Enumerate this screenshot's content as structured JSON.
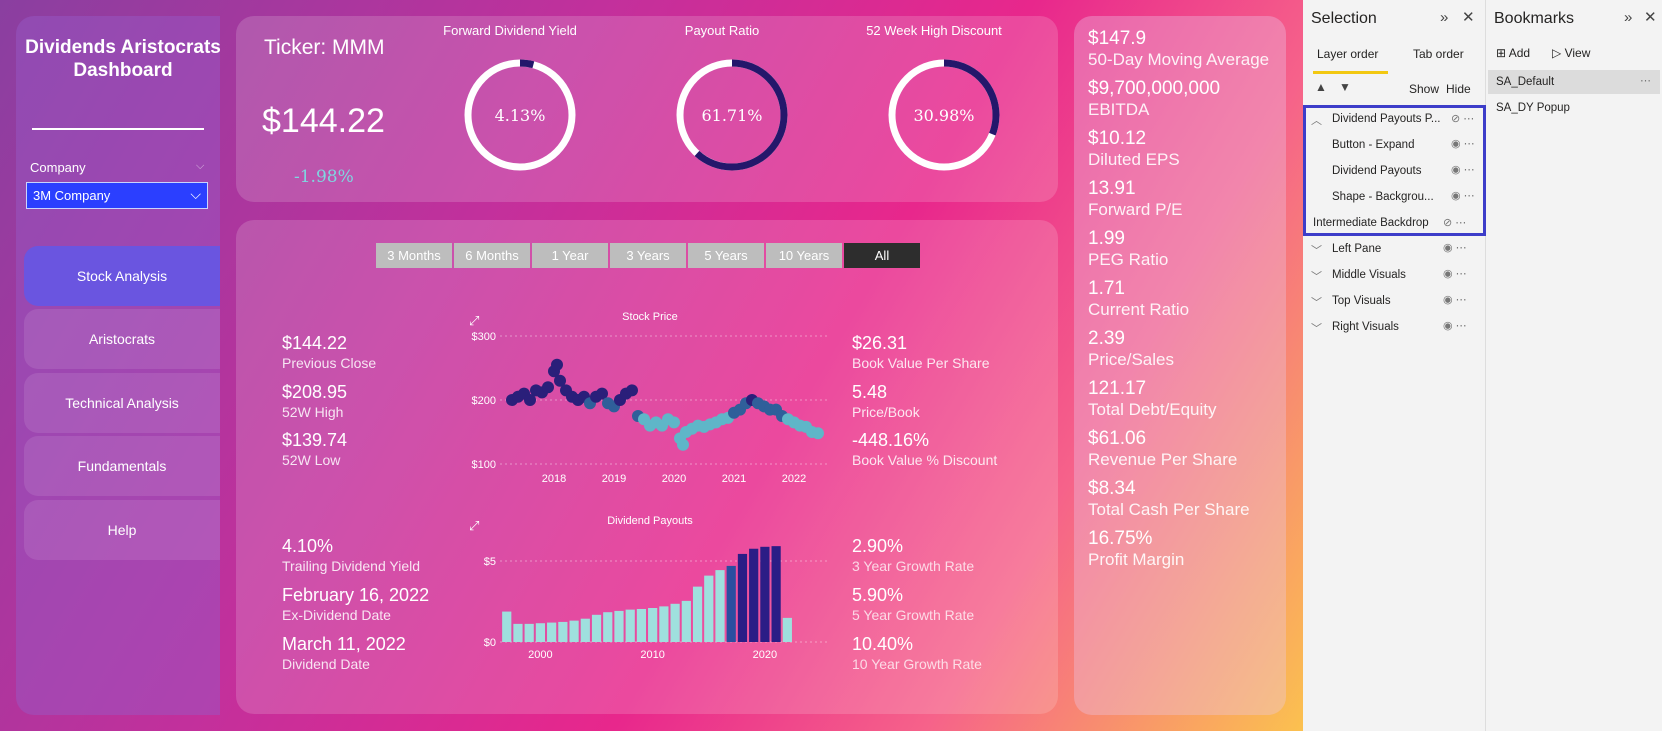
{
  "app": {
    "title": "Dividends Aristocrats Dashboard",
    "company_label": "Company",
    "company_value": "3M Company"
  },
  "nav": [
    {
      "label": "Stock Analysis",
      "active": true
    },
    {
      "label": "Aristocrats"
    },
    {
      "label": "Technical Analysis"
    },
    {
      "label": "Fundamentals"
    },
    {
      "label": "Help"
    }
  ],
  "top": {
    "ticker": "Ticker: MMM",
    "price": "$144.22",
    "change": "-1.98%",
    "gauges": [
      {
        "title": "Forward Dividend Yield",
        "value": "4.13%",
        "fraction": 0.0413
      },
      {
        "title": "Payout Ratio",
        "value": "61.71%",
        "fraction": 0.6171
      },
      {
        "title": "52 Week High Discount",
        "value": "30.98%",
        "fraction": 0.3098
      }
    ]
  },
  "ranges": [
    "3 Months",
    "6 Months",
    "1 Year",
    "3 Years",
    "5 Years",
    "10 Years",
    "All"
  ],
  "active_range": "All",
  "left_stats_top": [
    {
      "value": "$144.22",
      "label": "Previous Close"
    },
    {
      "value": "$208.95",
      "label": "52W High"
    },
    {
      "value": "$139.74",
      "label": "52W Low"
    }
  ],
  "left_stats_bottom": [
    {
      "value": "4.10%",
      "label": "Trailing Dividend Yield"
    },
    {
      "value": "February 16, 2022",
      "label": "Ex-Dividend Date"
    },
    {
      "value": "March 11, 2022",
      "label": "Dividend Date"
    }
  ],
  "right_stats_top": [
    {
      "value": "$26.31",
      "label": "Book Value Per Share"
    },
    {
      "value": "5.48",
      "label": "Price/Book"
    },
    {
      "value": "-448.16%",
      "label": "Book Value % Discount"
    }
  ],
  "right_stats_bottom": [
    {
      "value": "2.90%",
      "label": "3 Year Growth Rate"
    },
    {
      "value": "5.90%",
      "label": "5 Year Growth Rate"
    },
    {
      "value": "10.40%",
      "label": "10 Year Growth Rate"
    }
  ],
  "side_stats": [
    {
      "value": "$147.9",
      "label": "50-Day Moving Average"
    },
    {
      "value": "$9,700,000,000",
      "label": "EBITDA"
    },
    {
      "value": "$10.12",
      "label": "Diluted EPS"
    },
    {
      "value": "13.91",
      "label": "Forward P/E"
    },
    {
      "value": "1.99",
      "label": "PEG Ratio"
    },
    {
      "value": "1.71",
      "label": "Current Ratio"
    },
    {
      "value": "2.39",
      "label": "Price/Sales"
    },
    {
      "value": "121.17",
      "label": "Total Debt/Equity"
    },
    {
      "value": "$61.06",
      "label": "Revenue Per Share"
    },
    {
      "value": "$8.34",
      "label": "Total Cash Per Share"
    },
    {
      "value": "16.75%",
      "label": "Profit Margin"
    }
  ],
  "chart_data": [
    {
      "type": "scatter",
      "title": "Stock Price",
      "ylim": [
        100,
        300
      ],
      "yticks": [
        "$300",
        "$200",
        "$100"
      ],
      "xticks": [
        "2018",
        "2019",
        "2020",
        "2021",
        "2022"
      ],
      "x": [
        2017.3,
        2017.4,
        2017.5,
        2017.6,
        2017.7,
        2017.8,
        2017.9,
        2018.0,
        2018.05,
        2018.1,
        2018.2,
        2018.3,
        2018.4,
        2018.5,
        2018.6,
        2018.7,
        2018.8,
        2018.9,
        2019.0,
        2019.1,
        2019.2,
        2019.3,
        2019.4,
        2019.5,
        2019.6,
        2019.7,
        2019.8,
        2019.9,
        2020.0,
        2020.1,
        2020.15,
        2020.2,
        2020.3,
        2020.4,
        2020.5,
        2020.6,
        2020.7,
        2020.8,
        2020.9,
        2021.0,
        2021.1,
        2021.2,
        2021.3,
        2021.4,
        2021.5,
        2021.6,
        2021.7,
        2021.8,
        2021.9,
        2022.0,
        2022.1,
        2022.2,
        2022.3,
        2022.4
      ],
      "y": [
        200,
        205,
        210,
        200,
        215,
        212,
        220,
        245,
        255,
        230,
        215,
        205,
        200,
        205,
        195,
        205,
        210,
        195,
        190,
        200,
        210,
        215,
        175,
        170,
        160,
        165,
        160,
        170,
        165,
        140,
        130,
        150,
        155,
        160,
        158,
        162,
        165,
        170,
        172,
        180,
        185,
        195,
        200,
        195,
        190,
        185,
        185,
        175,
        170,
        165,
        160,
        158,
        150,
        148
      ]
    },
    {
      "type": "bar",
      "title": "Dividend Payouts",
      "ylim": [
        0,
        6.3
      ],
      "yticks": [
        "$5",
        "$0"
      ],
      "xticks": [
        "2000",
        "2010",
        "2020"
      ],
      "x": [
        1997,
        1998,
        1999,
        2000,
        2001,
        2002,
        2003,
        2004,
        2005,
        2006,
        2007,
        2008,
        2009,
        2010,
        2011,
        2012,
        2013,
        2014,
        2015,
        2016,
        2017,
        2018,
        2019,
        2020,
        2021,
        2022
      ],
      "values": [
        1.88,
        1.12,
        1.12,
        1.16,
        1.2,
        1.24,
        1.32,
        1.44,
        1.68,
        1.84,
        1.92,
        2.0,
        2.04,
        2.1,
        2.2,
        2.36,
        2.54,
        3.42,
        4.1,
        4.44,
        4.7,
        5.44,
        5.76,
        5.88,
        5.92,
        1.49
      ]
    }
  ],
  "selection_pane": {
    "title": "Selection",
    "tabs": [
      "Layer order",
      "Tab order"
    ],
    "show_label": "Show",
    "hide_label": "Hide",
    "layers": [
      {
        "label": "Dividend Payouts P...",
        "expanded": true,
        "hidden": true
      },
      {
        "label": "Button - Expand",
        "indent": true
      },
      {
        "label": "Dividend Payouts",
        "indent": true
      },
      {
        "label": "Shape - Backgrou...",
        "indent": true
      },
      {
        "label": "Intermediate Backdrop",
        "hidden": true
      },
      {
        "label": "Left Pane",
        "collapsed": true
      },
      {
        "label": "Middle Visuals",
        "collapsed": true
      },
      {
        "label": "Top Visuals",
        "collapsed": true
      },
      {
        "label": "Right Visuals",
        "collapsed": true
      }
    ]
  },
  "bookmarks_pane": {
    "title": "Bookmarks",
    "add_label": "Add",
    "view_label": "View",
    "items": [
      {
        "label": "SA_Default",
        "selected": true
      },
      {
        "label": "SA_DY Popup"
      }
    ]
  }
}
